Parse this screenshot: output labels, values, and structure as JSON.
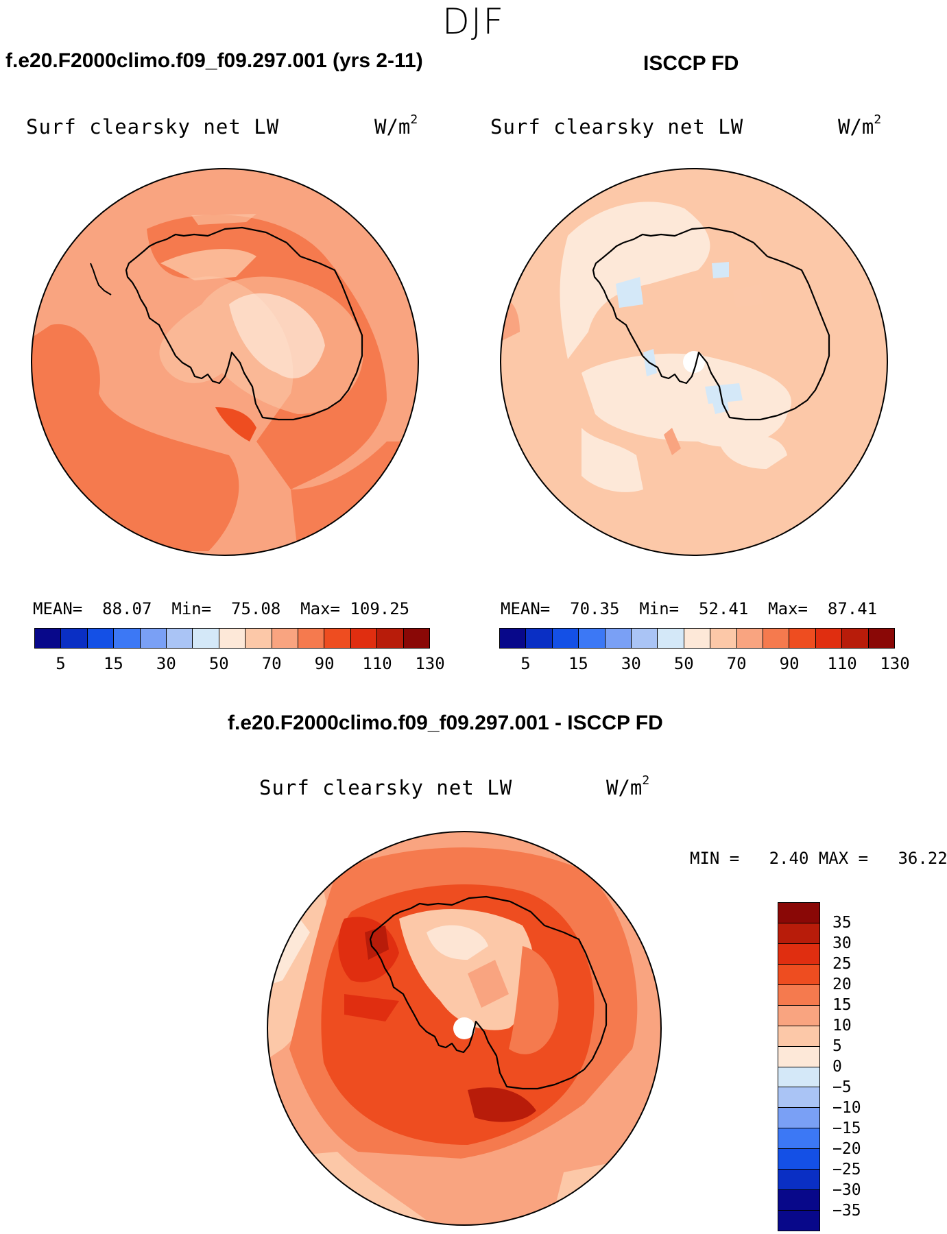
{
  "season": "DJF",
  "panels": {
    "model": {
      "title": "f.e20.F2000climo.f09_f09.297.001 (yrs 2-11)",
      "variable": "Surf clearsky net LW",
      "units": "W/m",
      "units_sup": "2",
      "stats": {
        "mean_label": "MEAN=",
        "mean": "88.07",
        "min_label": "Min=",
        "min": "75.08",
        "max_label": "Max=",
        "max": "109.25"
      }
    },
    "obs": {
      "title": "ISCCP FD",
      "variable": "Surf clearsky net LW",
      "units": "W/m",
      "units_sup": "2",
      "stats": {
        "mean_label": "MEAN=",
        "mean": "70.35",
        "min_label": "Min=",
        "min": "52.41",
        "max_label": "Max=",
        "max": "87.41"
      }
    },
    "diff": {
      "title": "f.e20.F2000climo.f09_f09.297.001 - ISCCP FD",
      "variable": "Surf clearsky net LW",
      "units": "W/m",
      "units_sup": "2",
      "stats": {
        "min_label": "MIN =",
        "min": "2.40",
        "max_label": "MAX =",
        "max": "36.22"
      }
    }
  },
  "colorbar_main": {
    "colors": [
      "#08088a",
      "#0a2fc4",
      "#1450e6",
      "#3c78f5",
      "#7aa0f5",
      "#aac4f5",
      "#d4e8f8",
      "#fde8d8",
      "#fcc8a8",
      "#f9a480",
      "#f57a4e",
      "#ee4d20",
      "#e02e10",
      "#b81c0a",
      "#8a0806"
    ],
    "ticks": [
      "5",
      "15",
      "30",
      "50",
      "70",
      "90",
      "110",
      "130"
    ]
  },
  "colorbar_diff": {
    "colors": [
      "#8a0806",
      "#b81c0a",
      "#e02e10",
      "#ee4d20",
      "#f57a4e",
      "#f9a480",
      "#fcc8a8",
      "#fde8d8",
      "#d4e8f8",
      "#aac4f5",
      "#7aa0f5",
      "#3c78f5",
      "#1450e6",
      "#0a2fc4",
      "#08088a"
    ],
    "ticks": [
      "35",
      "30",
      "25",
      "20",
      "15",
      "10",
      "5",
      "0",
      "−5",
      "−10",
      "−15",
      "−20",
      "−25",
      "−30",
      "−35"
    ]
  }
}
